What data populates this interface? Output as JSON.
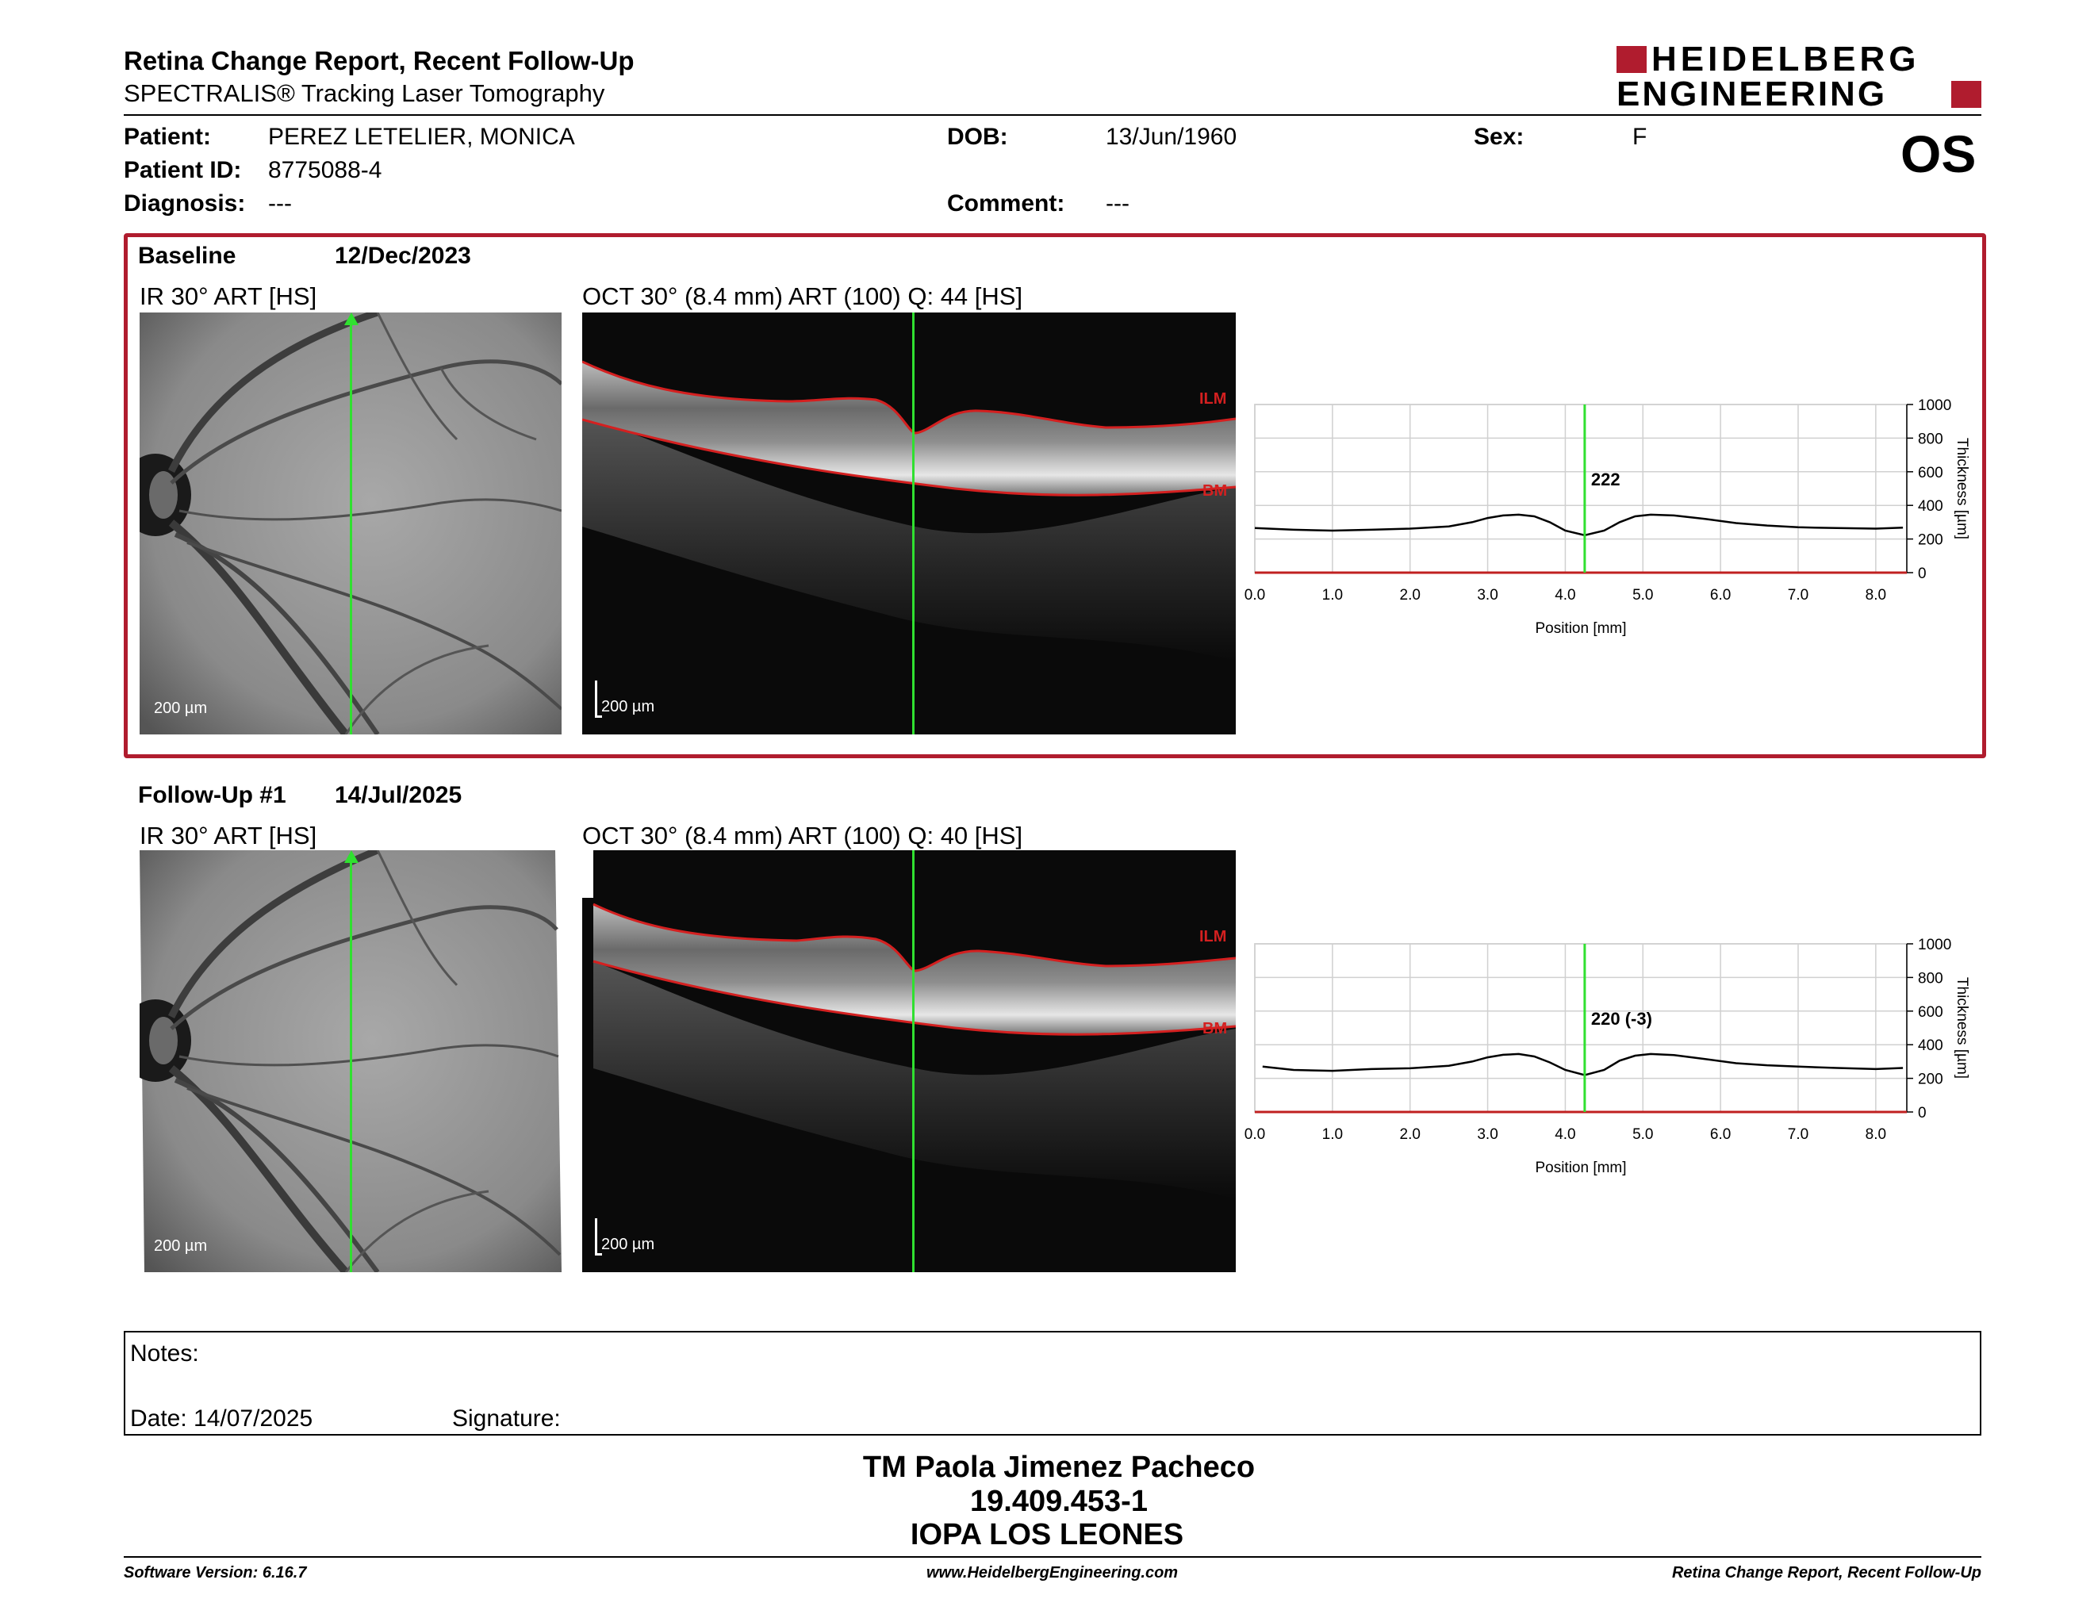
{
  "header": {
    "title": "Retina Change Report, Recent Follow-Up",
    "subtitle": "SPECTRALIS® Tracking Laser Tomography",
    "logo_line1": "HEIDELBERG",
    "logo_line2": "ENGINEERING",
    "eye": "OS"
  },
  "patient": {
    "patient_label": "Patient:",
    "patient_value": "PEREZ LETELIER, MONICA",
    "id_label": "Patient ID:",
    "id_value": "8775088-4",
    "diagnosis_label": "Diagnosis:",
    "diagnosis_value": "---",
    "dob_label": "DOB:",
    "dob_value": "13/Jun/1960",
    "comment_label": "Comment:",
    "comment_value": "---",
    "sex_label": "Sex:",
    "sex_value": "F"
  },
  "exams": [
    {
      "label": "Baseline",
      "date": "12/Dec/2023",
      "ir_title": "IR 30° ART [HS]",
      "oct_title": "OCT 30° (8.4 mm) ART (100) Q: 44 [HS]",
      "scale_ir": "200 µm",
      "scale_oct": "200 µm",
      "ilm": "ILM",
      "bm": "BM",
      "marker_label": "222"
    },
    {
      "label": "Follow-Up #1",
      "date": "14/Jul/2025",
      "ir_title": "IR 30° ART [HS]",
      "oct_title": "OCT 30° (8.4 mm) ART (100) Q: 40 [HS]",
      "scale_ir": "200 µm",
      "scale_oct": "200 µm",
      "ilm": "ILM",
      "bm": "BM",
      "marker_label": "220 (-3)"
    }
  ],
  "chart_data": [
    {
      "type": "line",
      "xlabel": "Position [mm]",
      "ylabel": "Thickness [µm]",
      "xlim": [
        0.0,
        8.4
      ],
      "ylim": [
        0,
        1000
      ],
      "xticks": [
        "0.0",
        "1.0",
        "2.0",
        "3.0",
        "4.0",
        "5.0",
        "6.0",
        "7.0",
        "8.0"
      ],
      "yticks": [
        "0",
        "200",
        "400",
        "600",
        "800",
        "1000"
      ],
      "grid": true,
      "marker_x": 4.25,
      "marker_label": "222",
      "series": [
        {
          "x": [
            0.0,
            0.5,
            1.0,
            1.5,
            2.0,
            2.5,
            2.8,
            3.0,
            3.2,
            3.4,
            3.6,
            3.8,
            4.0,
            4.25,
            4.5,
            4.7,
            4.9,
            5.1,
            5.4,
            5.8,
            6.2,
            6.6,
            7.0,
            7.5,
            8.0,
            8.35
          ],
          "y": [
            265,
            255,
            250,
            255,
            262,
            275,
            300,
            325,
            340,
            345,
            335,
            300,
            250,
            222,
            250,
            300,
            335,
            345,
            340,
            320,
            295,
            280,
            270,
            265,
            262,
            268
          ]
        }
      ]
    },
    {
      "type": "line",
      "xlabel": "Position [mm]",
      "ylabel": "Thickness [µm]",
      "xlim": [
        0.0,
        8.4
      ],
      "ylim": [
        0,
        1000
      ],
      "xticks": [
        "0.0",
        "1.0",
        "2.0",
        "3.0",
        "4.0",
        "5.0",
        "6.0",
        "7.0",
        "8.0"
      ],
      "yticks": [
        "0",
        "200",
        "400",
        "600",
        "800",
        "1000"
      ],
      "grid": true,
      "marker_x": 4.25,
      "marker_label": "220 (-3)",
      "series": [
        {
          "x": [
            0.1,
            0.5,
            1.0,
            1.5,
            2.0,
            2.5,
            2.8,
            3.0,
            3.2,
            3.4,
            3.6,
            3.8,
            4.0,
            4.25,
            4.5,
            4.7,
            4.9,
            5.1,
            5.4,
            5.8,
            6.2,
            6.6,
            7.0,
            7.5,
            8.0,
            8.35
          ],
          "y": [
            270,
            250,
            245,
            255,
            260,
            275,
            300,
            325,
            340,
            345,
            330,
            295,
            250,
            220,
            250,
            305,
            335,
            345,
            338,
            315,
            290,
            278,
            270,
            262,
            255,
            262
          ]
        }
      ]
    }
  ],
  "notes": {
    "notes_label": "Notes:",
    "date_label": "Date: 14/07/2025",
    "signature_label": "Signature:"
  },
  "signature_block": {
    "name": "TM Paola Jimenez Pacheco",
    "id": "19.409.453-1",
    "org": "IOPA LOS LEONES"
  },
  "footer": {
    "software": "Software Version: 6.16.7",
    "website": "www.HeidelbergEngineering.com",
    "report": "Retina Change Report, Recent Follow-Up"
  },
  "colors": {
    "accent_red": "#b01c2e",
    "green_line": "#30e030",
    "layer_red": "#d42020"
  }
}
